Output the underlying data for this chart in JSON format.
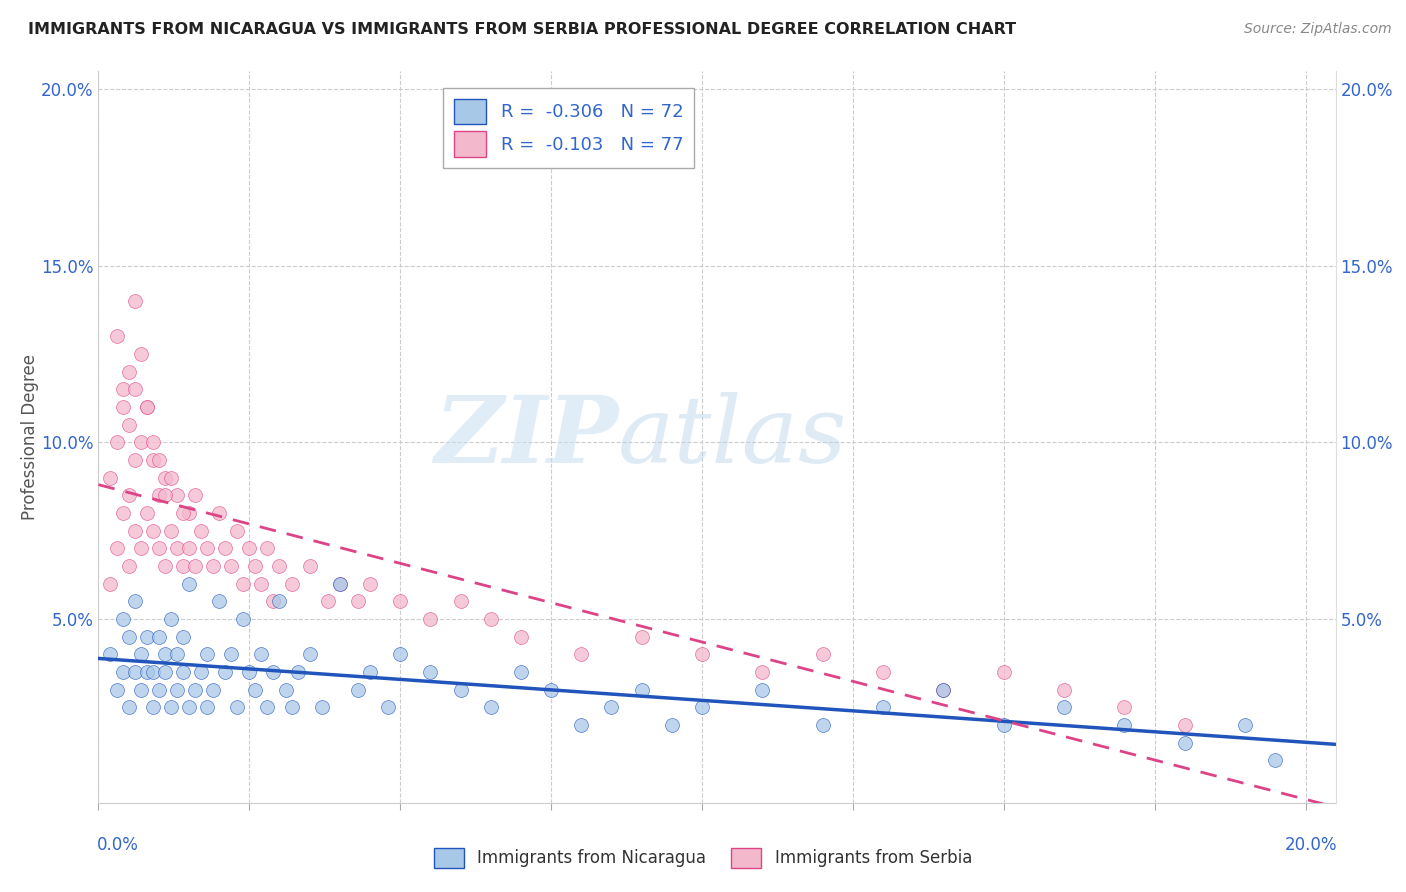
{
  "title": "IMMIGRANTS FROM NICARAGUA VS IMMIGRANTS FROM SERBIA PROFESSIONAL DEGREE CORRELATION CHART",
  "source": "Source: ZipAtlas.com",
  "ylabel": "Professional Degree",
  "xlim": [
    0.0,
    0.205
  ],
  "ylim": [
    -0.002,
    0.205
  ],
  "color_nicaragua": "#a8c8e8",
  "color_serbia": "#f4b8cc",
  "color_line_nicaragua": "#2255bb",
  "color_line_serbia": "#dd4488",
  "watermark_zip": "ZIP",
  "watermark_atlas": "atlas",
  "nicaragua_x": [
    0.002,
    0.003,
    0.004,
    0.004,
    0.005,
    0.005,
    0.006,
    0.006,
    0.007,
    0.007,
    0.008,
    0.008,
    0.009,
    0.009,
    0.01,
    0.01,
    0.011,
    0.011,
    0.012,
    0.012,
    0.013,
    0.013,
    0.014,
    0.014,
    0.015,
    0.015,
    0.016,
    0.017,
    0.018,
    0.018,
    0.019,
    0.02,
    0.021,
    0.022,
    0.023,
    0.024,
    0.025,
    0.026,
    0.027,
    0.028,
    0.029,
    0.03,
    0.031,
    0.032,
    0.033,
    0.035,
    0.037,
    0.04,
    0.043,
    0.045,
    0.048,
    0.05,
    0.055,
    0.06,
    0.065,
    0.07,
    0.075,
    0.08,
    0.085,
    0.09,
    0.095,
    0.1,
    0.11,
    0.12,
    0.13,
    0.14,
    0.15,
    0.16,
    0.17,
    0.18,
    0.19,
    0.195
  ],
  "nicaragua_y": [
    0.04,
    0.03,
    0.035,
    0.05,
    0.025,
    0.045,
    0.035,
    0.055,
    0.03,
    0.04,
    0.035,
    0.045,
    0.025,
    0.035,
    0.03,
    0.045,
    0.035,
    0.04,
    0.025,
    0.05,
    0.03,
    0.04,
    0.035,
    0.045,
    0.025,
    0.06,
    0.03,
    0.035,
    0.04,
    0.025,
    0.03,
    0.055,
    0.035,
    0.04,
    0.025,
    0.05,
    0.035,
    0.03,
    0.04,
    0.025,
    0.035,
    0.055,
    0.03,
    0.025,
    0.035,
    0.04,
    0.025,
    0.06,
    0.03,
    0.035,
    0.025,
    0.04,
    0.035,
    0.03,
    0.025,
    0.035,
    0.03,
    0.02,
    0.025,
    0.03,
    0.02,
    0.025,
    0.03,
    0.02,
    0.025,
    0.03,
    0.02,
    0.025,
    0.02,
    0.015,
    0.02,
    0.01
  ],
  "serbia_x": [
    0.002,
    0.002,
    0.003,
    0.003,
    0.004,
    0.004,
    0.005,
    0.005,
    0.005,
    0.006,
    0.006,
    0.006,
    0.007,
    0.007,
    0.008,
    0.008,
    0.009,
    0.009,
    0.01,
    0.01,
    0.011,
    0.011,
    0.012,
    0.013,
    0.013,
    0.014,
    0.015,
    0.015,
    0.016,
    0.017,
    0.018,
    0.019,
    0.02,
    0.021,
    0.022,
    0.023,
    0.024,
    0.025,
    0.026,
    0.027,
    0.028,
    0.029,
    0.03,
    0.032,
    0.035,
    0.038,
    0.04,
    0.043,
    0.045,
    0.05,
    0.055,
    0.06,
    0.065,
    0.07,
    0.08,
    0.09,
    0.1,
    0.11,
    0.12,
    0.13,
    0.14,
    0.15,
    0.16,
    0.17,
    0.18,
    0.003,
    0.004,
    0.005,
    0.006,
    0.007,
    0.008,
    0.009,
    0.01,
    0.011,
    0.012,
    0.014,
    0.016
  ],
  "serbia_y": [
    0.06,
    0.09,
    0.07,
    0.1,
    0.08,
    0.11,
    0.065,
    0.085,
    0.12,
    0.075,
    0.095,
    0.14,
    0.07,
    0.1,
    0.08,
    0.11,
    0.075,
    0.095,
    0.07,
    0.085,
    0.065,
    0.09,
    0.075,
    0.07,
    0.085,
    0.065,
    0.07,
    0.08,
    0.065,
    0.075,
    0.07,
    0.065,
    0.08,
    0.07,
    0.065,
    0.075,
    0.06,
    0.07,
    0.065,
    0.06,
    0.07,
    0.055,
    0.065,
    0.06,
    0.065,
    0.055,
    0.06,
    0.055,
    0.06,
    0.055,
    0.05,
    0.055,
    0.05,
    0.045,
    0.04,
    0.045,
    0.04,
    0.035,
    0.04,
    0.035,
    0.03,
    0.035,
    0.03,
    0.025,
    0.02,
    0.13,
    0.115,
    0.105,
    0.115,
    0.125,
    0.11,
    0.1,
    0.095,
    0.085,
    0.09,
    0.08,
    0.085
  ]
}
